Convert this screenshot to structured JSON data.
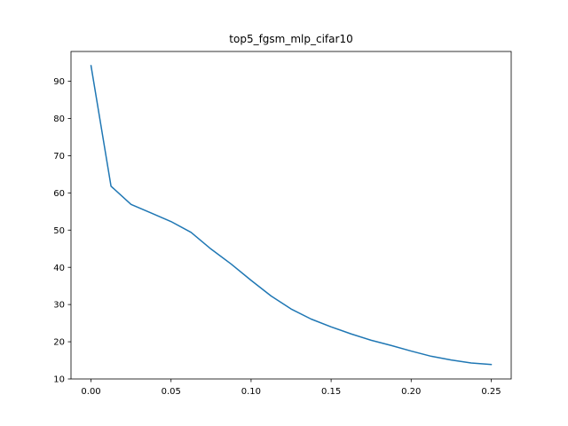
{
  "chart_data": {
    "type": "line",
    "title": "top5_fgsm_mlp_cifar10",
    "xlabel": "",
    "ylabel": "",
    "xlim": [
      -0.0125,
      0.2625
    ],
    "ylim": [
      10.0,
      98.0
    ],
    "xticks": [
      0.0,
      0.05,
      0.1,
      0.15,
      0.2,
      0.25
    ],
    "xtick_labels": [
      "0.00",
      "0.05",
      "0.10",
      "0.15",
      "0.20",
      "0.25"
    ],
    "yticks": [
      10,
      20,
      30,
      40,
      50,
      60,
      70,
      80,
      90
    ],
    "ytick_labels": [
      "10",
      "20",
      "30",
      "40",
      "50",
      "60",
      "70",
      "80",
      "90"
    ],
    "grid": false,
    "legend": "none",
    "series": [
      {
        "color": "#1f77b4",
        "x": [
          0.0,
          0.0125,
          0.025,
          0.0375,
          0.05,
          0.0625,
          0.075,
          0.0875,
          0.1,
          0.1125,
          0.125,
          0.1375,
          0.15,
          0.1625,
          0.175,
          0.1875,
          0.2,
          0.2125,
          0.225,
          0.2375,
          0.25
        ],
        "y": [
          94.2,
          61.8,
          56.9,
          54.6,
          52.3,
          49.4,
          44.9,
          40.9,
          36.5,
          32.3,
          28.8,
          26.1,
          24.0,
          22.1,
          20.4,
          19.0,
          17.5,
          16.1,
          15.1,
          14.3,
          13.9
        ]
      }
    ]
  }
}
